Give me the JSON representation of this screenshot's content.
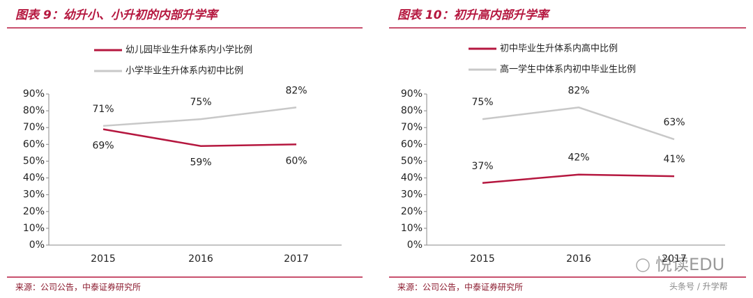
{
  "chart_data": [
    {
      "type": "line",
      "title": "图表 9：幼升小、小升初的内部升学率",
      "categories": [
        "2015",
        "2016",
        "2017"
      ],
      "series": [
        {
          "name": "幼儿园毕业生升体系内小学比例",
          "color": "#b5173f",
          "values": [
            69,
            59,
            60
          ],
          "value_labels": [
            "69%",
            "59%",
            "60%"
          ]
        },
        {
          "name": "小学毕业生升体系内初中比例",
          "color": "#c8c8c8",
          "values": [
            71,
            75,
            82
          ],
          "value_labels": [
            "71%",
            "75%",
            "82%"
          ]
        }
      ],
      "ylim": [
        0,
        90
      ],
      "yticks": [
        {
          "value": 0,
          "label": "0%"
        },
        {
          "value": 10,
          "label": "10%"
        },
        {
          "value": 20,
          "label": "20%"
        },
        {
          "value": 30,
          "label": "30%"
        },
        {
          "value": 40,
          "label": "40%"
        },
        {
          "value": 50,
          "label": "50%"
        },
        {
          "value": 60,
          "label": "60%"
        },
        {
          "value": 70,
          "label": "70%"
        },
        {
          "value": 80,
          "label": "80%"
        },
        {
          "value": 90,
          "label": "90%"
        }
      ],
      "source": "来源：公司公告，中泰证券研究所"
    },
    {
      "type": "line",
      "title": "图表 10：初升高内部升学率",
      "categories": [
        "2015",
        "2016",
        "2017"
      ],
      "series": [
        {
          "name": "初中毕业生升体系内高中比例",
          "color": "#b5173f",
          "values": [
            37,
            42,
            41
          ],
          "value_labels": [
            "37%",
            "42%",
            "41%"
          ]
        },
        {
          "name": "高一学生中体系内初中毕业生比例",
          "color": "#c8c8c8",
          "values": [
            75,
            82,
            63
          ],
          "value_labels": [
            "75%",
            "82%",
            "63%"
          ]
        }
      ],
      "ylim": [
        0,
        90
      ],
      "yticks": [
        {
          "value": 0,
          "label": "0%"
        },
        {
          "value": 10,
          "label": "10%"
        },
        {
          "value": 20,
          "label": "20%"
        },
        {
          "value": 30,
          "label": "30%"
        },
        {
          "value": 40,
          "label": "40%"
        },
        {
          "value": 50,
          "label": "50%"
        },
        {
          "value": 60,
          "label": "60%"
        },
        {
          "value": 70,
          "label": "70%"
        },
        {
          "value": 80,
          "label": "80%"
        },
        {
          "value": 90,
          "label": "90%"
        }
      ],
      "source": "来源：公司公告，中泰证券研究所"
    }
  ],
  "watermark": {
    "brand": "悦读EDU",
    "account": "头条号 / 升学帮"
  }
}
